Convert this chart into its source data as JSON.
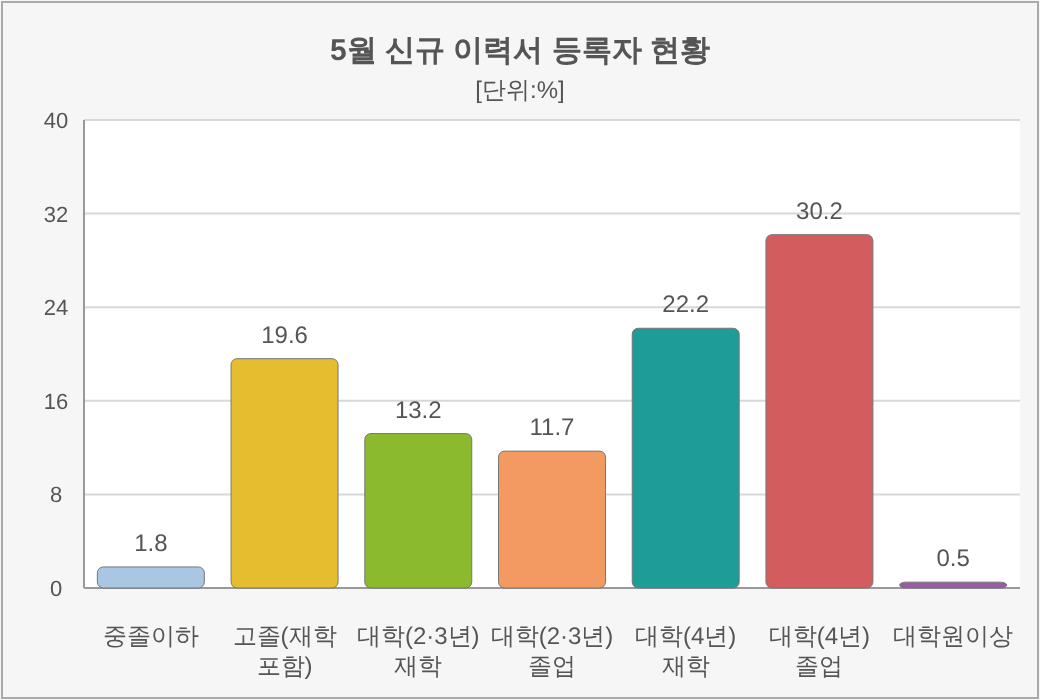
{
  "chart_data": {
    "type": "bar",
    "title": "5월 신규 이력서 등록자 현황",
    "subtitle": "[단위:%]",
    "categories": [
      "중졸이하",
      "고졸(재학\n포함)",
      "대학(2·3년)\n재학",
      "대학(2·3년)\n졸업",
      "대학(4년)\n재학",
      "대학(4년)\n졸업",
      "대학원이상"
    ],
    "values": [
      1.8,
      19.6,
      13.2,
      11.7,
      22.2,
      30.2,
      0.5
    ],
    "colors": [
      "#a9c6e2",
      "#e6bd2e",
      "#8cba2e",
      "#f29a62",
      "#1e9c97",
      "#d35c5e",
      "#9a5aa8"
    ],
    "ylim": [
      0,
      40
    ],
    "yticks": [
      0,
      8,
      16,
      24,
      32,
      40
    ],
    "grid": "y",
    "data_labels": true
  }
}
